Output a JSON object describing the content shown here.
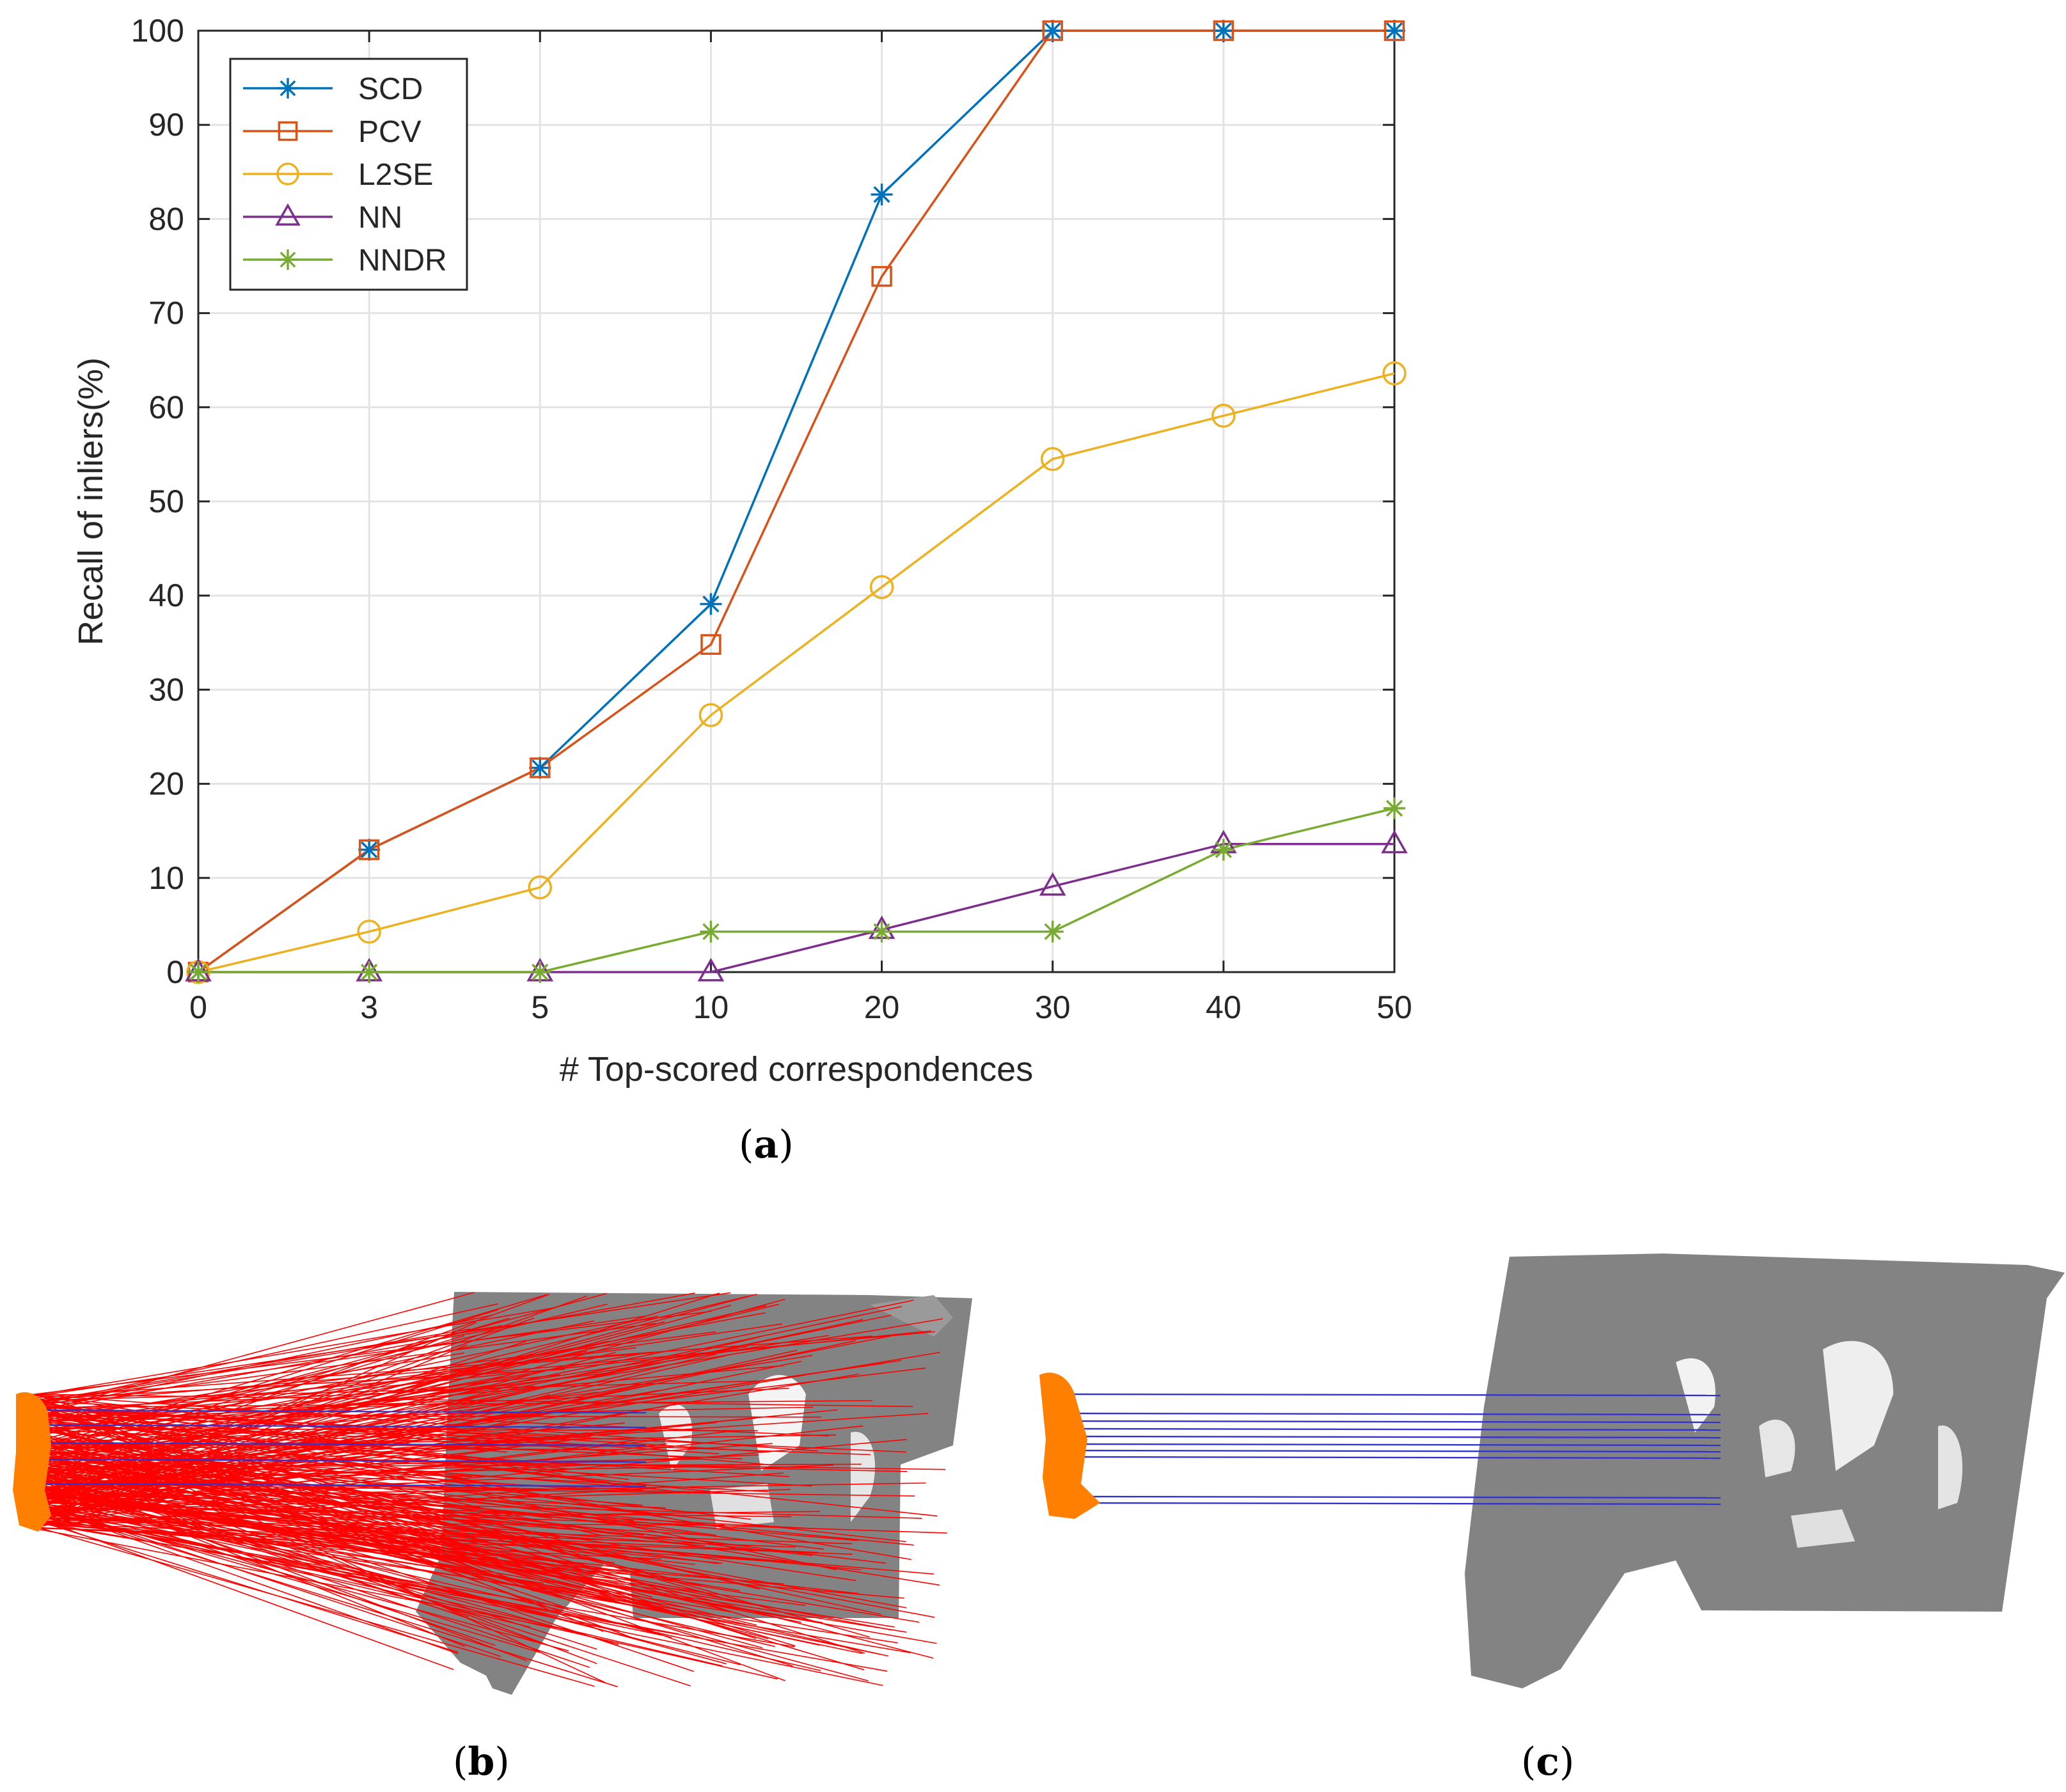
{
  "chart_data": {
    "type": "line",
    "x_categories": [
      "0",
      "3",
      "5",
      "10",
      "20",
      "30",
      "40",
      "50"
    ],
    "xlabel": "# Top-scored correspondences",
    "ylabel": "Recall of inliers(%)",
    "ylim": [
      0,
      100
    ],
    "yticks": [
      0,
      10,
      20,
      30,
      40,
      50,
      60,
      70,
      80,
      90,
      100
    ],
    "grid": true,
    "legend_position": "top-left",
    "series": [
      {
        "name": "SCD",
        "color": "#0072BD",
        "marker": "asterisk",
        "values": [
          0,
          13,
          21.7,
          39.1,
          82.6,
          100,
          100,
          100
        ]
      },
      {
        "name": "PCV",
        "color": "#D95319",
        "marker": "square",
        "values": [
          0,
          13,
          21.7,
          34.8,
          73.9,
          100,
          100,
          100
        ]
      },
      {
        "name": "L2SE",
        "color": "#EDB120",
        "marker": "circle",
        "values": [
          0,
          4.3,
          9,
          27.3,
          40.9,
          54.5,
          59.1,
          63.6
        ]
      },
      {
        "name": "NN",
        "color": "#7E2F8E",
        "marker": "triangle",
        "values": [
          0,
          0,
          0,
          0,
          4.5,
          9.1,
          13.6,
          13.6
        ]
      },
      {
        "name": "NNDR",
        "color": "#77AC30",
        "marker": "asterisk",
        "values": [
          0,
          0,
          0,
          4.3,
          4.3,
          4.3,
          13,
          17.4
        ]
      }
    ]
  },
  "captions": {
    "a": "a",
    "b": "b",
    "c": "c"
  },
  "colors": {
    "source_cloud": "#FF8000",
    "target_cloud": "#808080",
    "outlier_match": "#FF0000",
    "inlier_match": "#3333CC"
  }
}
